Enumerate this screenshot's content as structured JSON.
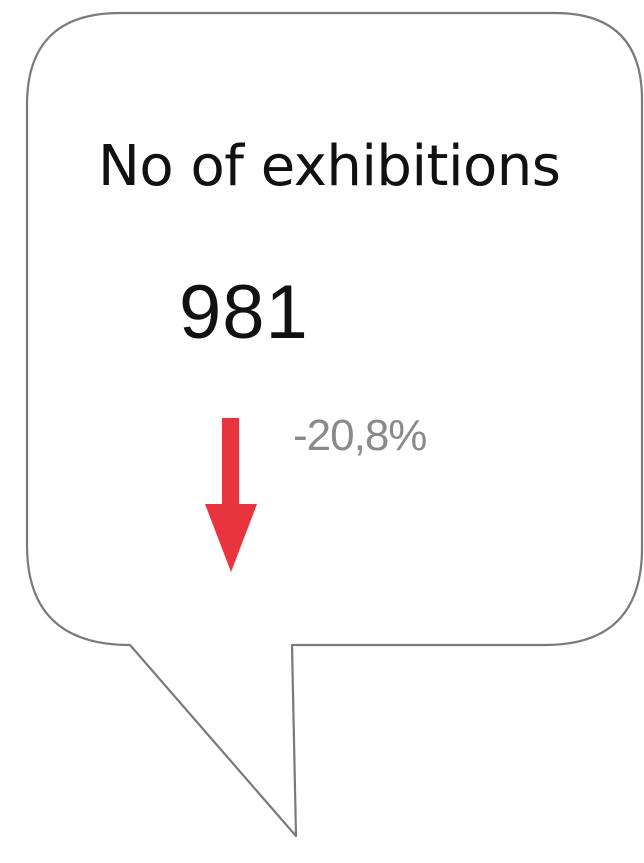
{
  "card": {
    "title": "No of exhibitions",
    "value": "981",
    "change": "-20,8%",
    "trend_icon": "arrow-down-icon",
    "trend_color": "#e8343c",
    "change_color": "#8a8a8a",
    "border_color": "#7a7a7a"
  }
}
